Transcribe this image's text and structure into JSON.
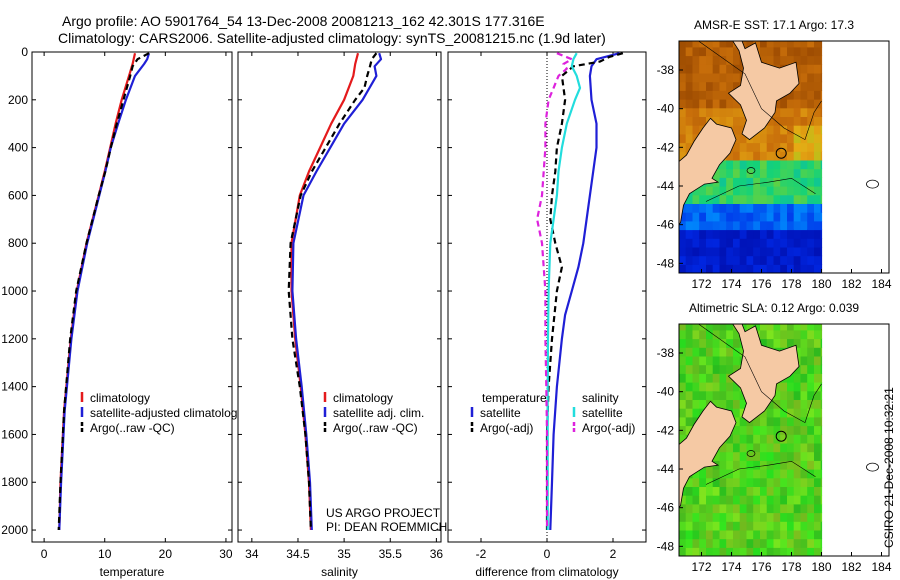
{
  "header": {
    "line1": "Argo profile: AO 5901764_54 13-Dec-2008 20081213_162 42.301S 177.316E",
    "line2": "Climatology: CARS2006. Satellite-adjusted climatology: synTS_20081215.nc (1.9d later)"
  },
  "side_label": "CSIRO 21-Dec-2008 10:32:21",
  "credit": {
    "line1": "US ARGO PROJECT",
    "line2": "PI: DEAN ROEMMICH"
  },
  "colors": {
    "climatology": "#e41a1c",
    "satellite": "#1f1fd6",
    "argo": "#000000",
    "sat_sal_diff": "#22dddd",
    "argo_sal_diff": "#dd22dd",
    "land": "#f5c9a4"
  },
  "chart_data": [
    {
      "type": "line",
      "name": "temperature-profile",
      "xlabel": "temperature",
      "ylabel": "",
      "xlim": [
        -2,
        31
      ],
      "ylim": [
        2050,
        0
      ],
      "xticks": [
        0,
        10,
        20,
        30
      ],
      "yticks": [
        0,
        200,
        400,
        600,
        800,
        1000,
        1200,
        1400,
        1600,
        1800,
        2000
      ],
      "legend": {
        "position": "lower-left",
        "entries": [
          "climatology",
          "satellite-adjusted climatology",
          "Argo(..raw -QC)"
        ]
      },
      "series": [
        {
          "name": "climatology",
          "color_key": "climatology",
          "style": "solid",
          "depth": [
            5,
            50,
            100,
            200,
            300,
            400,
            500,
            600,
            800,
            1000,
            1200,
            1500,
            1800,
            2000
          ],
          "values": [
            15.0,
            14.6,
            14.0,
            12.8,
            11.8,
            10.9,
            10.0,
            9.0,
            7.0,
            5.4,
            4.4,
            3.3,
            2.7,
            2.5
          ]
        },
        {
          "name": "satellite-adjusted climatology",
          "color_key": "satellite",
          "style": "solid",
          "depth": [
            5,
            30,
            50,
            100,
            200,
            300,
            400,
            500,
            600,
            800,
            1000,
            1200,
            1500,
            1800,
            2000
          ],
          "values": [
            17.3,
            17.0,
            16.5,
            15.0,
            13.5,
            12.2,
            11.0,
            10.1,
            9.1,
            7.1,
            5.5,
            4.5,
            3.4,
            2.8,
            2.5
          ]
        },
        {
          "name": "Argo(..raw -QC)",
          "color_key": "argo",
          "style": "dashed",
          "depth": [
            5,
            30,
            60,
            100,
            200,
            300,
            400,
            500,
            600,
            800,
            1000,
            1200,
            1500,
            1800,
            2000
          ],
          "values": [
            17.3,
            15.4,
            14.6,
            14.2,
            13.1,
            12.0,
            11.0,
            10.1,
            9.0,
            7.0,
            5.3,
            4.3,
            3.3,
            2.7,
            2.4
          ]
        }
      ]
    },
    {
      "type": "line",
      "name": "salinity-profile",
      "xlabel": "salinity",
      "ylabel": "",
      "xlim": [
        33.85,
        36.05
      ],
      "ylim": [
        2050,
        0
      ],
      "xticks": [
        34,
        34.5,
        35,
        35.5,
        36
      ],
      "yticks": [
        0,
        200,
        400,
        600,
        800,
        1000,
        1200,
        1400,
        1600,
        1800,
        2000
      ],
      "legend": {
        "position": "lower-right",
        "entries": [
          "climatology",
          "satellite adj. clim.",
          "Argo(..raw -QC)"
        ]
      },
      "series": [
        {
          "name": "climatology",
          "color_key": "climatology",
          "style": "solid",
          "depth": [
            5,
            50,
            100,
            200,
            300,
            400,
            500,
            600,
            800,
            1000,
            1200,
            1400,
            1600,
            1800,
            2000
          ],
          "values": [
            35.15,
            35.12,
            35.1,
            35.0,
            34.86,
            34.74,
            34.62,
            34.52,
            34.43,
            34.43,
            34.47,
            34.53,
            34.58,
            34.62,
            34.64
          ]
        },
        {
          "name": "satellite adj. clim.",
          "color_key": "satellite",
          "style": "solid",
          "depth": [
            5,
            30,
            60,
            100,
            200,
            300,
            400,
            500,
            600,
            800,
            1000,
            1200,
            1400,
            1600,
            1800,
            2000
          ],
          "values": [
            35.38,
            35.4,
            35.33,
            35.35,
            35.2,
            35.0,
            34.85,
            34.7,
            34.56,
            34.45,
            34.44,
            34.48,
            34.54,
            34.59,
            34.63,
            34.65
          ]
        },
        {
          "name": "Argo(..raw -QC)",
          "color_key": "argo",
          "style": "dashed",
          "depth": [
            5,
            30,
            60,
            100,
            150,
            200,
            300,
            400,
            500,
            600,
            800,
            1000,
            1200,
            1400,
            1600,
            1800,
            2000
          ],
          "values": [
            35.35,
            35.3,
            35.28,
            35.25,
            35.22,
            35.12,
            34.95,
            34.8,
            34.65,
            34.53,
            34.42,
            34.4,
            34.44,
            34.52,
            34.58,
            34.62,
            34.64
          ]
        }
      ]
    },
    {
      "type": "line",
      "name": "difference-profile",
      "xlabel": "difference from climatology",
      "ylabel": "",
      "xlim": [
        -3,
        3
      ],
      "ylim": [
        2050,
        0
      ],
      "xticks": [
        -2,
        0,
        2
      ],
      "yticks": [
        0,
        200,
        400,
        600,
        800,
        1000,
        1200,
        1400,
        1600,
        1800,
        2000
      ],
      "legend": {
        "position": "lower",
        "group_temperature": "temperature",
        "group_salinity": "salinity",
        "entries_temperature": [
          "satellite",
          "Argo(-adj)"
        ],
        "entries_salinity": [
          "satellite",
          "Argo(-adj)"
        ]
      },
      "series": [
        {
          "name": "temperature satellite",
          "color_key": "satellite",
          "style": "solid",
          "depth": [
            5,
            30,
            60,
            100,
            200,
            300,
            400,
            500,
            600,
            700,
            800,
            900,
            1000,
            1100,
            1200,
            1400,
            1600,
            1800,
            2000
          ],
          "values": [
            2.2,
            1.5,
            1.35,
            1.3,
            1.35,
            1.5,
            1.5,
            1.4,
            1.3,
            1.2,
            1.1,
            0.95,
            0.75,
            0.55,
            0.45,
            0.3,
            0.2,
            0.15,
            0.1
          ]
        },
        {
          "name": "temperature Argo(-adj)",
          "color_key": "argo",
          "style": "dashed",
          "depth": [
            5,
            20,
            40,
            60,
            100,
            150,
            200,
            300,
            400,
            500,
            600,
            700,
            800,
            900,
            1000,
            1200,
            1400,
            1600,
            1800,
            2000
          ],
          "values": [
            2.3,
            1.9,
            1.6,
            0.8,
            0.45,
            0.5,
            0.55,
            0.45,
            0.3,
            0.25,
            0.15,
            0.1,
            0.25,
            0.45,
            0.3,
            0.15,
            0.05,
            0.0,
            0.0,
            0.0
          ]
        },
        {
          "name": "salinity satellite",
          "color_key": "sat_sal_diff",
          "style": "solid",
          "depth": [
            5,
            30,
            60,
            100,
            150,
            200,
            300,
            400,
            500,
            600,
            700,
            800,
            1000,
            1200,
            1400,
            1600,
            1800,
            2000
          ],
          "values": [
            0.9,
            0.8,
            0.75,
            0.9,
            1.0,
            0.85,
            0.6,
            0.45,
            0.35,
            0.3,
            0.2,
            0.1,
            0.05,
            0.03,
            0.02,
            0.02,
            0.02,
            0.02
          ]
        },
        {
          "name": "salinity Argo(-adj)",
          "color_key": "argo_sal_diff",
          "style": "dashed",
          "depth": [
            5,
            30,
            50,
            70,
            100,
            150,
            200,
            300,
            400,
            500,
            600,
            700,
            800,
            1000,
            1200,
            1400,
            1600,
            1800,
            2000
          ],
          "values": [
            0.3,
            0.75,
            0.5,
            0.6,
            0.35,
            0.2,
            0.05,
            -0.05,
            -0.05,
            -0.1,
            -0.15,
            -0.3,
            -0.15,
            -0.05,
            -0.05,
            -0.02,
            0.0,
            0.0,
            0.0
          ]
        }
      ]
    },
    {
      "type": "heatmap",
      "name": "sst-map",
      "title": "AMSR-E SST: 17.1 Argo: 17.3",
      "xlim": [
        170.5,
        184.5
      ],
      "ylim": [
        -48.5,
        -36.5
      ],
      "xticks": [
        172,
        174,
        176,
        178,
        180,
        182,
        184
      ],
      "yticks": [
        -38,
        -40,
        -42,
        -44,
        -46,
        -48
      ],
      "data_extent_lon": [
        170.5,
        180
      ],
      "argo_position": {
        "lat": -42.301,
        "lon": 177.316
      }
    },
    {
      "type": "heatmap",
      "name": "sla-map",
      "title": "Altimetric SLA: 0.12 Argo: 0.039",
      "xlim": [
        170.5,
        184.5
      ],
      "ylim": [
        -48.5,
        -36.5
      ],
      "xticks": [
        172,
        174,
        176,
        178,
        180,
        182,
        184
      ],
      "yticks": [
        -38,
        -40,
        -42,
        -44,
        -46,
        -48
      ],
      "data_extent_lon": [
        170.5,
        180
      ],
      "argo_position": {
        "lat": -42.301,
        "lon": 177.316
      }
    }
  ]
}
